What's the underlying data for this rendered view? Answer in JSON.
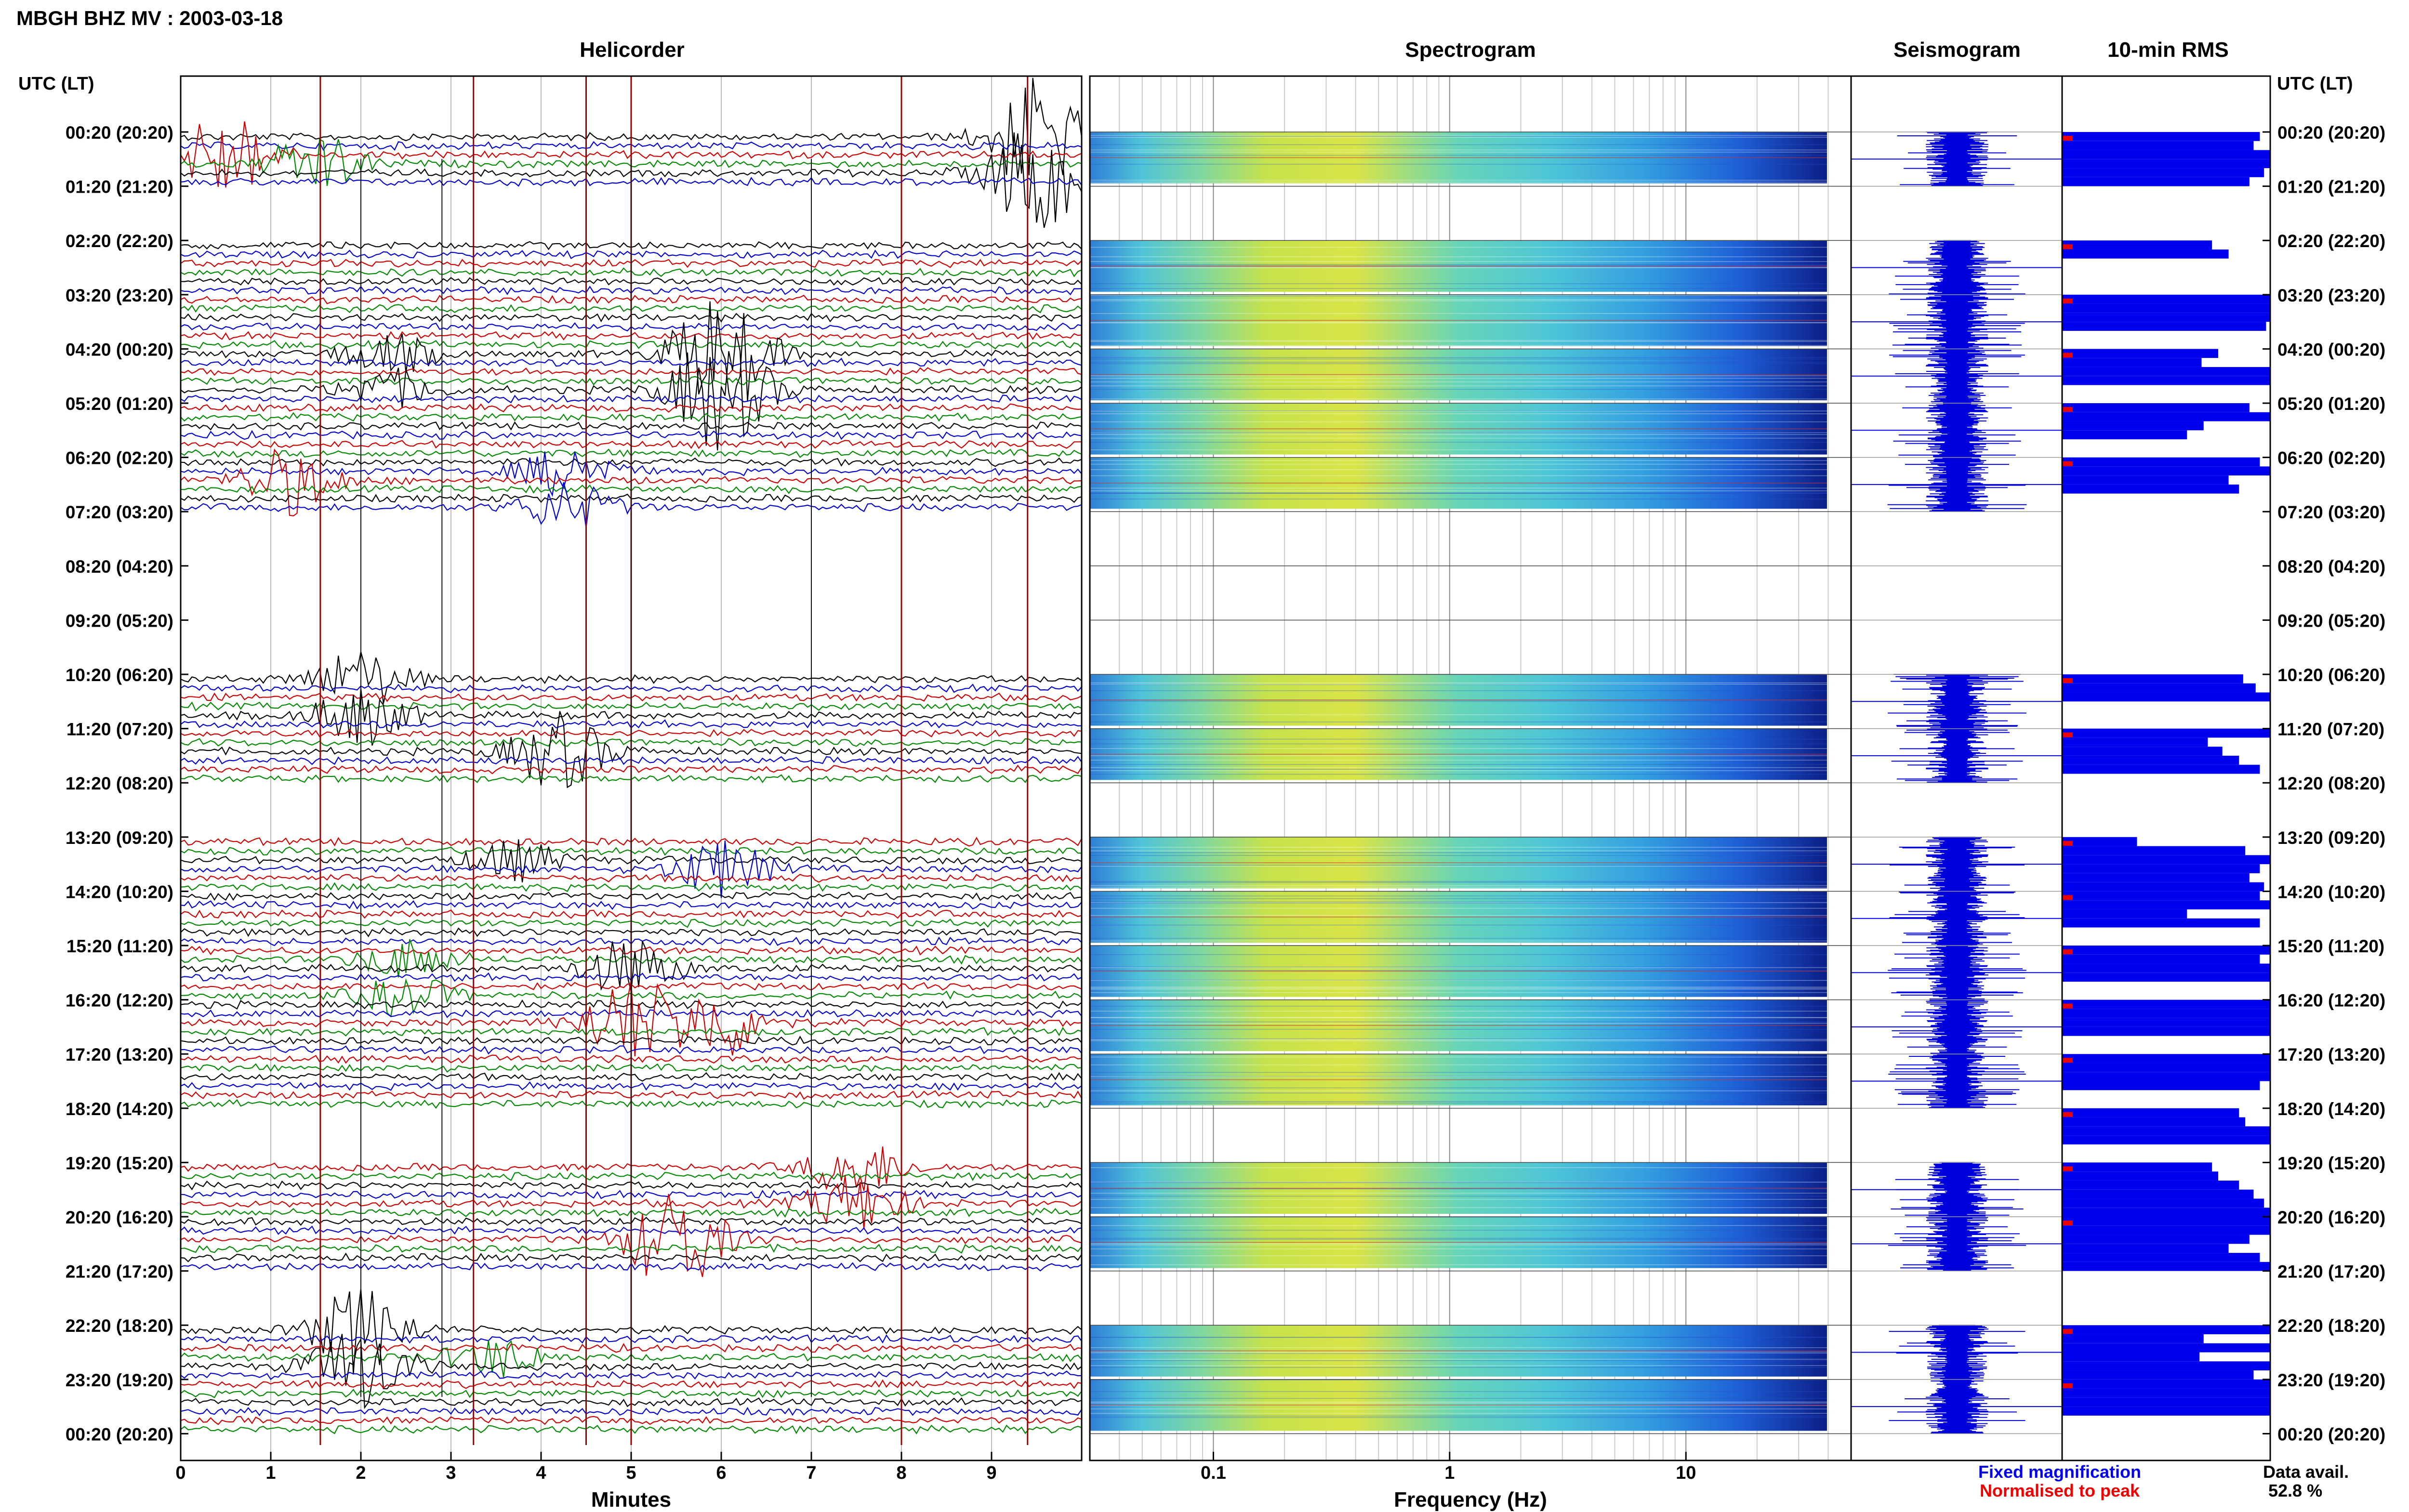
{
  "header": {
    "title": "MBGH BHZ MV : 2003-03-18"
  },
  "panels": {
    "helicorder": "Helicorder",
    "spectrogram": "Spectrogram",
    "seismogram": "Seismogram",
    "rms": "10-min RMS"
  },
  "axes": {
    "time_label_left": "UTC (LT)",
    "time_label_right": "UTC (LT)",
    "minutes_label": "Minutes",
    "minutes_ticks": [
      "0",
      "1",
      "2",
      "3",
      "4",
      "5",
      "6",
      "7",
      "8",
      "9"
    ],
    "frequency_label": "Frequency (Hz)",
    "frequency_ticks": [
      "0.1",
      "1",
      "10"
    ]
  },
  "rows": [
    "00:20 (20:20)",
    "01:20 (21:20)",
    "02:20 (22:20)",
    "03:20 (23:20)",
    "04:20 (00:20)",
    "05:20 (01:20)",
    "06:20 (02:20)",
    "07:20 (03:20)",
    "08:20 (04:20)",
    "09:20 (05:20)",
    "10:20 (06:20)",
    "11:20 (07:20)",
    "12:20 (08:20)",
    "13:20 (09:20)",
    "14:20 (10:20)",
    "15:20 (11:20)",
    "16:20 (12:20)",
    "17:20 (13:20)",
    "18:20 (14:20)",
    "19:20 (15:20)",
    "20:20 (16:20)",
    "21:20 (17:20)",
    "22:20 (18:20)",
    "23:20 (19:20)",
    "00:20 (20:20)"
  ],
  "legend": {
    "fixed": "Fixed magnification",
    "normalised": "Normalised to peak",
    "fixed_color": "#0000ee",
    "normalised_color": "#ee0000",
    "avail_label": "Data avail.",
    "avail_value": "52.8 %"
  },
  "chart_data": {
    "type": "helicorder",
    "x_range_minutes": [
      0,
      10
    ],
    "freq_range_hz": [
      0.03,
      50
    ],
    "freq_scale": "log",
    "trace_colors": [
      "#000000",
      "#0000cc",
      "#cc0000",
      "#008800"
    ],
    "rms_availability": [
      1,
      1,
      0,
      1,
      0.75,
      1,
      1,
      1,
      0,
      0,
      0.85,
      1,
      1,
      0,
      1,
      1,
      1,
      1,
      1,
      1,
      1,
      1,
      1,
      1
    ],
    "rms_hourly": [
      [
        0.95,
        0.92,
        1,
        1,
        0.97,
        0.9
      ],
      [
        0,
        0,
        0,
        0,
        0,
        0
      ],
      [
        0.72,
        0.8,
        0,
        0,
        0,
        0
      ],
      [
        1,
        1,
        1,
        0.98,
        0,
        0
      ],
      [
        0.75,
        0.67,
        1,
        1,
        0,
        0
      ],
      [
        0.9,
        1,
        0.68,
        0.6,
        0,
        0
      ],
      [
        0.95,
        1,
        0.8,
        0.85,
        0,
        0
      ],
      [
        0,
        0,
        0,
        0,
        0,
        0
      ],
      [
        0,
        0,
        0,
        0,
        0,
        0
      ],
      [
        0,
        0,
        0,
        0,
        0,
        0
      ],
      [
        0.87,
        0.93,
        1,
        0,
        0,
        0
      ],
      [
        1,
        0.7,
        0.77,
        0.85,
        0.95,
        0
      ],
      [
        0,
        0,
        0,
        0,
        0,
        0
      ],
      [
        0.36,
        0.88,
        1,
        0.95,
        0.9,
        0.97
      ],
      [
        0.95,
        1,
        0.6,
        0.95,
        0,
        0
      ],
      [
        1,
        0.95,
        1,
        1,
        0,
        0
      ],
      [
        1,
        1,
        1,
        1,
        0,
        0
      ],
      [
        1,
        1,
        1,
        0.95,
        0,
        0
      ],
      [
        0.85,
        0.88,
        1,
        1,
        0,
        0
      ],
      [
        0.72,
        0.75,
        0.85,
        0.92,
        0.97,
        1
      ],
      [
        1,
        1,
        0.9,
        0.8,
        0.95,
        1
      ],
      [
        0,
        0,
        0,
        0,
        0,
        0
      ],
      [
        1,
        0.68,
        1,
        0.66,
        1,
        0.92
      ],
      [
        1,
        1,
        1,
        1,
        0,
        0
      ],
      [
        0,
        0,
        0,
        0,
        0,
        0
      ]
    ],
    "hours_with_data": [
      0,
      2,
      3,
      4,
      5,
      6,
      10,
      11,
      13,
      14,
      15,
      16,
      17,
      19,
      20,
      22,
      23
    ]
  }
}
